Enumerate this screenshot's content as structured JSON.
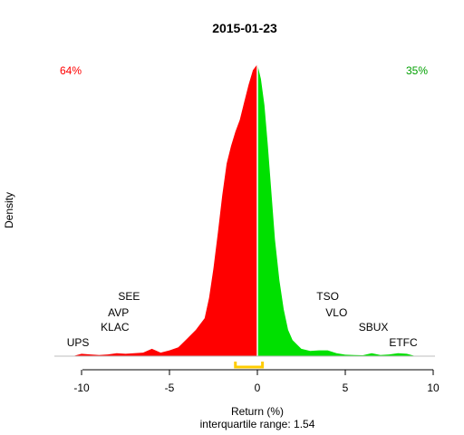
{
  "chart_data": {
    "type": "area",
    "title": "2015-01-23",
    "xlabel": "Return (%)",
    "ylabel": "Density",
    "subtitle": "interquartile range: 1.54",
    "xlim": [
      -12,
      10
    ],
    "ylim": [
      0,
      1
    ],
    "xticks": [
      -10,
      -5,
      0,
      5,
      10
    ],
    "split_at": 0,
    "pct_negative": "64%",
    "pct_positive": "35%",
    "colors": {
      "negative": "#ff0000",
      "positive": "#00e000",
      "iqr": "#ffcc00",
      "baseline": "#bebebe"
    },
    "iqr": [
      -1.25,
      0.29
    ],
    "density": {
      "x": [
        -10.5,
        -10.0,
        -9.5,
        -9.0,
        -8.5,
        -8.0,
        -7.5,
        -7.0,
        -6.5,
        -6.0,
        -5.5,
        -5.0,
        -4.5,
        -4.0,
        -3.5,
        -3.0,
        -2.75,
        -2.5,
        -2.25,
        -2.0,
        -1.75,
        -1.5,
        -1.25,
        -1.0,
        -0.75,
        -0.5,
        -0.25,
        0.0,
        0.2,
        0.4,
        0.6,
        0.8,
        1.0,
        1.25,
        1.5,
        1.75,
        2.0,
        2.5,
        3.0,
        3.5,
        4.0,
        4.5,
        5.0,
        5.5,
        6.0,
        6.5,
        7.0,
        7.5,
        8.0,
        8.5,
        9.0
      ],
      "y": [
        0.0,
        0.008,
        0.006,
        0.004,
        0.006,
        0.01,
        0.008,
        0.01,
        0.012,
        0.025,
        0.012,
        0.02,
        0.03,
        0.06,
        0.09,
        0.13,
        0.2,
        0.3,
        0.42,
        0.55,
        0.66,
        0.72,
        0.77,
        0.81,
        0.87,
        0.93,
        0.98,
        1.0,
        0.95,
        0.86,
        0.72,
        0.56,
        0.4,
        0.26,
        0.16,
        0.09,
        0.055,
        0.025,
        0.018,
        0.02,
        0.02,
        0.01,
        0.005,
        0.004,
        0.003,
        0.01,
        0.004,
        0.006,
        0.01,
        0.008,
        0.0
      ]
    },
    "labels_left": [
      {
        "text": "SEE",
        "x": -7.3,
        "level": 4
      },
      {
        "text": "AVP",
        "x": -7.9,
        "level": 3
      },
      {
        "text": "KLAC",
        "x": -8.1,
        "level": 2
      },
      {
        "text": "UPS",
        "x": -10.2,
        "level": 1
      }
    ],
    "labels_right": [
      {
        "text": "TSO",
        "x": 4.0,
        "level": 4
      },
      {
        "text": "VLO",
        "x": 4.5,
        "level": 3
      },
      {
        "text": "SBUX",
        "x": 6.6,
        "level": 2
      },
      {
        "text": "ETFC",
        "x": 8.3,
        "level": 1
      }
    ]
  }
}
